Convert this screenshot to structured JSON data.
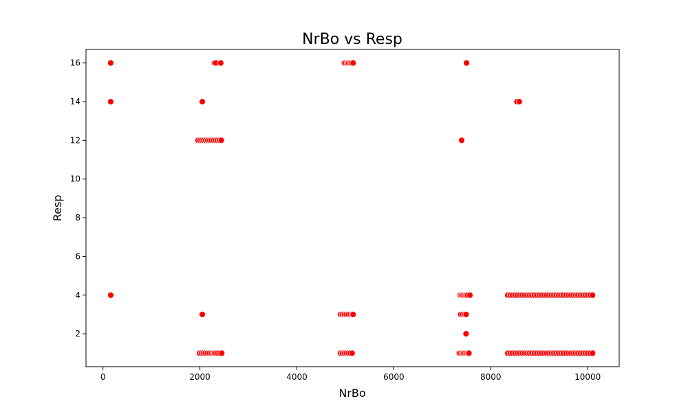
{
  "chart_data": {
    "type": "scatter",
    "title": "NrBo vs Resp",
    "xlabel": "NrBo",
    "ylabel": "Resp",
    "xlim": [
      -350,
      10650
    ],
    "ylim": [
      0.3,
      16.7
    ],
    "xticks": [
      0,
      2000,
      4000,
      6000,
      8000,
      10000
    ],
    "yticks": [
      2,
      4,
      6,
      8,
      10,
      12,
      14,
      16
    ],
    "grid": false,
    "legend": "none",
    "marker_color": "#ff0000",
    "marker_edge_color": "#ffffff",
    "points": [
      [
        160,
        16
      ],
      [
        160,
        14
      ],
      [
        160,
        4
      ],
      [
        2050,
        14
      ],
      [
        2050,
        3
      ],
      [
        2300,
        16
      ],
      [
        2330,
        16
      ],
      [
        2430,
        16
      ],
      [
        1960,
        12
      ],
      [
        2000,
        12
      ],
      [
        2040,
        12
      ],
      [
        2080,
        12
      ],
      [
        2120,
        12
      ],
      [
        2160,
        12
      ],
      [
        2200,
        12
      ],
      [
        2240,
        12
      ],
      [
        2280,
        12
      ],
      [
        2320,
        12
      ],
      [
        2360,
        12
      ],
      [
        2400,
        12
      ],
      [
        2440,
        12
      ],
      [
        1990,
        1
      ],
      [
        2030,
        1
      ],
      [
        2070,
        1
      ],
      [
        2110,
        1
      ],
      [
        2150,
        1
      ],
      [
        2190,
        1
      ],
      [
        2230,
        1
      ],
      [
        2270,
        1
      ],
      [
        2300,
        1
      ],
      [
        2330,
        1
      ],
      [
        2370,
        1
      ],
      [
        2410,
        1
      ],
      [
        2450,
        1
      ],
      [
        4980,
        16
      ],
      [
        5010,
        16
      ],
      [
        5040,
        16
      ],
      [
        5070,
        16
      ],
      [
        5100,
        16
      ],
      [
        5130,
        16
      ],
      [
        5160,
        16
      ],
      [
        4900,
        3
      ],
      [
        4940,
        3
      ],
      [
        4980,
        3
      ],
      [
        5020,
        3
      ],
      [
        5060,
        3
      ],
      [
        5100,
        3
      ],
      [
        5140,
        3
      ],
      [
        5160,
        3
      ],
      [
        4900,
        1
      ],
      [
        4940,
        1
      ],
      [
        4980,
        1
      ],
      [
        5020,
        1
      ],
      [
        5060,
        1
      ],
      [
        5100,
        1
      ],
      [
        5140,
        1
      ],
      [
        7500,
        16
      ],
      [
        7400,
        12
      ],
      [
        7370,
        4
      ],
      [
        7400,
        4
      ],
      [
        7430,
        4
      ],
      [
        7460,
        4
      ],
      [
        7490,
        4
      ],
      [
        7520,
        4
      ],
      [
        7570,
        4
      ],
      [
        7380,
        3
      ],
      [
        7420,
        3
      ],
      [
        7460,
        3
      ],
      [
        7490,
        3
      ],
      [
        7490,
        2
      ],
      [
        7350,
        1
      ],
      [
        7380,
        1
      ],
      [
        7410,
        1
      ],
      [
        7440,
        1
      ],
      [
        7470,
        1
      ],
      [
        7500,
        1
      ],
      [
        7530,
        1
      ],
      [
        7550,
        1
      ],
      [
        8540,
        14
      ],
      [
        8590,
        14
      ],
      [
        8350,
        4
      ],
      [
        8400,
        4
      ],
      [
        8450,
        4
      ],
      [
        8500,
        4
      ],
      [
        8550,
        4
      ],
      [
        8600,
        4
      ],
      [
        8650,
        4
      ],
      [
        8700,
        4
      ],
      [
        8750,
        4
      ],
      [
        8800,
        4
      ],
      [
        8850,
        4
      ],
      [
        8900,
        4
      ],
      [
        8950,
        4
      ],
      [
        9000,
        4
      ],
      [
        9050,
        4
      ],
      [
        9100,
        4
      ],
      [
        9150,
        4
      ],
      [
        9200,
        4
      ],
      [
        9250,
        4
      ],
      [
        9300,
        4
      ],
      [
        9350,
        4
      ],
      [
        9400,
        4
      ],
      [
        9450,
        4
      ],
      [
        9500,
        4
      ],
      [
        9550,
        4
      ],
      [
        9600,
        4
      ],
      [
        9650,
        4
      ],
      [
        9700,
        4
      ],
      [
        9750,
        4
      ],
      [
        9800,
        4
      ],
      [
        9850,
        4
      ],
      [
        9900,
        4
      ],
      [
        9950,
        4
      ],
      [
        10000,
        4
      ],
      [
        10050,
        4
      ],
      [
        10100,
        4
      ],
      [
        8350,
        1
      ],
      [
        8400,
        1
      ],
      [
        8450,
        1
      ],
      [
        8500,
        1
      ],
      [
        8550,
        1
      ],
      [
        8600,
        1
      ],
      [
        8650,
        1
      ],
      [
        8700,
        1
      ],
      [
        8750,
        1
      ],
      [
        8800,
        1
      ],
      [
        8850,
        1
      ],
      [
        8900,
        1
      ],
      [
        8950,
        1
      ],
      [
        9000,
        1
      ],
      [
        9050,
        1
      ],
      [
        9100,
        1
      ],
      [
        9150,
        1
      ],
      [
        9200,
        1
      ],
      [
        9250,
        1
      ],
      [
        9300,
        1
      ],
      [
        9350,
        1
      ],
      [
        9400,
        1
      ],
      [
        9450,
        1
      ],
      [
        9500,
        1
      ],
      [
        9550,
        1
      ],
      [
        9600,
        1
      ],
      [
        9650,
        1
      ],
      [
        9700,
        1
      ],
      [
        9750,
        1
      ],
      [
        9800,
        1
      ],
      [
        9850,
        1
      ],
      [
        9900,
        1
      ],
      [
        9950,
        1
      ],
      [
        10000,
        1
      ],
      [
        10050,
        1
      ],
      [
        10100,
        1
      ]
    ]
  }
}
